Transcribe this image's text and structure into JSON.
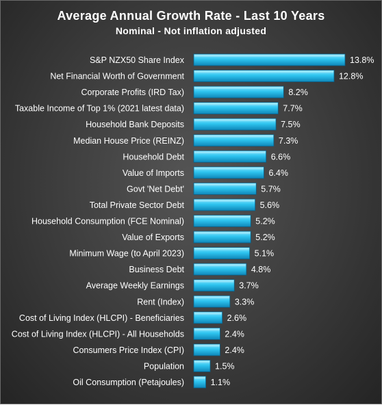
{
  "chart_data": {
    "type": "bar",
    "orientation": "horizontal",
    "title": "Average Annual Growth Rate - Last 10 Years",
    "subtitle": "Nominal - Not inflation adjusted",
    "categories": [
      "S&P NZX50 Share Index",
      "Net Financial Worth of Government",
      "Corporate Profits (IRD Tax)",
      "Taxable Income of Top 1% (2021 latest data)",
      "Household Bank Deposits",
      "Median House Price (REINZ)",
      "Household Debt",
      "Value of Imports",
      "Govt 'Net Debt'",
      "Total Private Sector Debt",
      "Household Consumption (FCE Nominal)",
      "Value of Exports",
      "Minimum Wage (to April 2023)",
      "Business Debt",
      "Average Weekly Earnings",
      "Rent (Index)",
      "Cost of Living Index (HLCPI) - Beneficiaries",
      "Cost of Living Index (HLCPI) - All Households",
      "Consumers Price Index (CPI)",
      "Population",
      "Oil Consumption (Petajoules)"
    ],
    "values": [
      13.8,
      12.8,
      8.2,
      7.7,
      7.5,
      7.3,
      6.6,
      6.4,
      5.7,
      5.6,
      5.2,
      5.2,
      5.1,
      4.8,
      3.7,
      3.3,
      2.6,
      2.4,
      2.4,
      1.5,
      1.1
    ],
    "value_labels": [
      "13.8%",
      "12.8%",
      "8.2%",
      "7.7%",
      "7.5%",
      "7.3%",
      "6.6%",
      "6.4%",
      "5.7%",
      "5.6%",
      "5.2%",
      "5.2%",
      "5.1%",
      "4.8%",
      "3.7%",
      "3.3%",
      "2.6%",
      "2.4%",
      "2.4%",
      "1.5%",
      "1.1%"
    ],
    "unit": "%",
    "xlim": [
      0,
      13.8
    ],
    "grid": false,
    "legend": "none",
    "colors": {
      "bar_top": "#8ee8ff",
      "bar_mid": "#2ec4ef",
      "bar_bottom": "#0e86b8",
      "bar_edge": "#0a5f86",
      "text": "#ffffff"
    }
  }
}
